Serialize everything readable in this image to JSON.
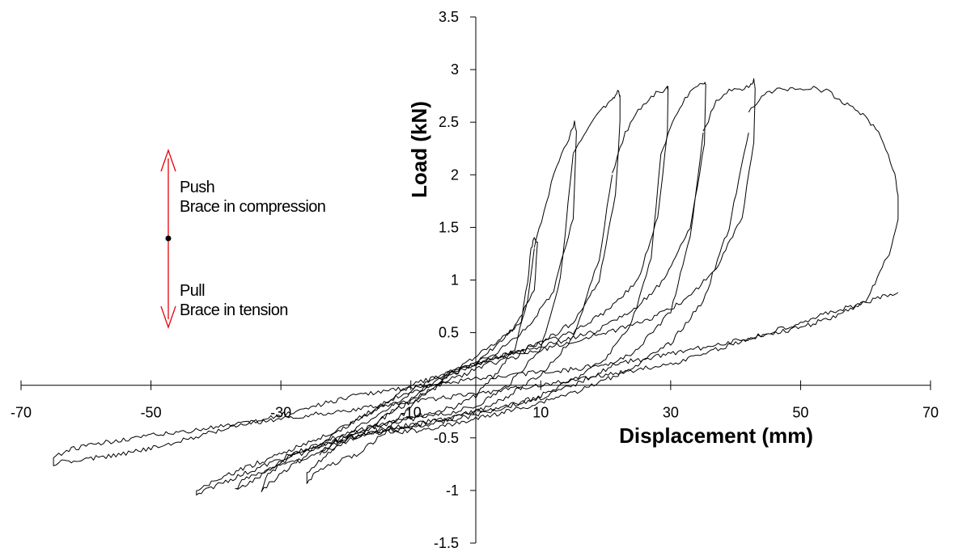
{
  "chart_data": {
    "type": "line",
    "title": "",
    "xlabel": "Displacement (mm)",
    "ylabel": "Load (kN)",
    "xlim": [
      -70,
      70
    ],
    "ylim": [
      -1.5,
      3.5
    ],
    "xticks": [
      "-70",
      "-50",
      "-30",
      "-10",
      "10",
      "30",
      "50",
      "70"
    ],
    "yticks": [
      "-1.5",
      "-1",
      "-0.5",
      "0.5",
      "1",
      "1.5",
      "2",
      "2.5",
      "3",
      "3.5"
    ],
    "grid": false,
    "legend": "none",
    "annotations": {
      "push_label": "Push",
      "push_desc": "Brace in compression",
      "pull_label": "Pull",
      "pull_desc": "Brace in tension",
      "arrow_color": "#e8000b"
    },
    "series": [
      {
        "x": [
          0,
          7,
          8,
          8.5,
          9,
          9.5,
          9,
          6,
          2,
          -2,
          -6,
          -10,
          -14,
          -18,
          -22,
          -25,
          -26,
          -26,
          -22,
          -18,
          -14,
          -10,
          -6,
          -3,
          0,
          3,
          6,
          8,
          9
        ],
        "y": [
          0.2,
          0.6,
          1.0,
          1.3,
          1.4,
          1.35,
          0.9,
          0.55,
          0.35,
          0.2,
          0.02,
          -0.2,
          -0.45,
          -0.65,
          -0.75,
          -0.85,
          -0.95,
          -0.85,
          -0.6,
          -0.45,
          -0.35,
          -0.3,
          -0.25,
          -0.2,
          -0.1,
          0.1,
          0.35,
          0.8,
          1.3
        ]
      },
      {
        "x": [
          9,
          12,
          14,
          15,
          15.2,
          15.5,
          15,
          12,
          8,
          3,
          -2,
          -8,
          -14,
          -20,
          -26,
          -32,
          -36,
          -37,
          -34,
          -28,
          -22,
          -16,
          -10,
          -5,
          0,
          5,
          10,
          13,
          15
        ],
        "y": [
          1.3,
          2.0,
          2.3,
          2.45,
          2.5,
          2.4,
          1.6,
          0.9,
          0.55,
          0.3,
          0.15,
          -0.05,
          -0.3,
          -0.55,
          -0.7,
          -0.8,
          -0.9,
          -1.0,
          -0.9,
          -0.65,
          -0.5,
          -0.4,
          -0.32,
          -0.28,
          -0.2,
          0.0,
          0.35,
          1.0,
          2.2
        ]
      },
      {
        "x": [
          15,
          17,
          19,
          20,
          21,
          21.5,
          22,
          22.2,
          22.2,
          21.5,
          19,
          15,
          10,
          5,
          0,
          -5,
          -10,
          -16,
          -22,
          -28,
          -34,
          -38,
          -43,
          -43,
          -40,
          -34,
          -28,
          -22,
          -16,
          -10,
          -4,
          0,
          5,
          10,
          15,
          19,
          21
        ],
        "y": [
          2.2,
          2.4,
          2.6,
          2.65,
          2.7,
          2.75,
          2.8,
          2.75,
          2.5,
          1.8,
          1.0,
          0.6,
          0.4,
          0.3,
          0.2,
          0.1,
          0.0,
          -0.25,
          -0.45,
          -0.6,
          -0.75,
          -0.85,
          -1.0,
          -1.05,
          -0.95,
          -0.8,
          -0.65,
          -0.55,
          -0.45,
          -0.38,
          -0.32,
          -0.25,
          -0.1,
          0.1,
          0.45,
          1.2,
          2.0
        ]
      },
      {
        "x": [
          21,
          23,
          25,
          27,
          28.5,
          29.5,
          29.6,
          29.5,
          28,
          25,
          20,
          15,
          10,
          5,
          0,
          -5,
          -10,
          -15,
          -20,
          -25,
          -28,
          -31,
          -33,
          -32,
          -29,
          -25,
          -20,
          -15,
          -10,
          -5,
          0,
          5,
          10,
          15,
          20,
          24,
          27,
          28.5
        ],
        "y": [
          2.0,
          2.4,
          2.6,
          2.75,
          2.8,
          2.82,
          2.85,
          2.4,
          1.6,
          1.0,
          0.7,
          0.5,
          0.4,
          0.3,
          0.2,
          0.1,
          -0.05,
          -0.2,
          -0.4,
          -0.6,
          -0.75,
          -0.9,
          -1.0,
          -0.85,
          -0.7,
          -0.6,
          -0.5,
          -0.42,
          -0.38,
          -0.32,
          -0.25,
          -0.2,
          -0.1,
          0.05,
          0.25,
          0.6,
          1.2,
          2.2
        ]
      },
      {
        "x": [
          28.5,
          31,
          33,
          34.5,
          35.2,
          35.4,
          35.2,
          33,
          29,
          24,
          18,
          12,
          6,
          0,
          -6,
          -12,
          -18,
          -22,
          -24,
          -23,
          -20,
          -15,
          -10,
          -5,
          0,
          5,
          10,
          15,
          20,
          25,
          30,
          33,
          35
        ],
        "y": [
          2.2,
          2.6,
          2.8,
          2.85,
          2.87,
          2.85,
          2.3,
          1.5,
          1.0,
          0.7,
          0.5,
          0.4,
          0.3,
          0.2,
          0.05,
          -0.15,
          -0.4,
          -0.55,
          -0.65,
          -0.6,
          -0.5,
          -0.45,
          -0.4,
          -0.35,
          -0.28,
          -0.2,
          -0.12,
          0.0,
          0.15,
          0.35,
          0.7,
          1.4,
          2.4
        ]
      },
      {
        "x": [
          35,
          37,
          39,
          41,
          42,
          42.5,
          42.8,
          43,
          42.8,
          41,
          37,
          32,
          26,
          20,
          14,
          8,
          2,
          -4,
          -10,
          -14,
          -16,
          -15,
          -12,
          -8,
          -4,
          0,
          4,
          8,
          12,
          16,
          20,
          25,
          30,
          35,
          39,
          42
        ],
        "y": [
          2.4,
          2.7,
          2.8,
          2.82,
          2.85,
          2.88,
          2.9,
          2.8,
          2.3,
          1.6,
          1.1,
          0.8,
          0.6,
          0.5,
          0.4,
          0.3,
          0.2,
          0.05,
          -0.15,
          -0.3,
          -0.4,
          -0.45,
          -0.45,
          -0.42,
          -0.38,
          -0.32,
          -0.26,
          -0.2,
          -0.12,
          -0.05,
          0.05,
          0.2,
          0.4,
          0.8,
          1.5,
          2.4
        ]
      },
      {
        "x": [
          42,
          44,
          46,
          48,
          50,
          52,
          54,
          56,
          58,
          60,
          62,
          63.5,
          64.5,
          65,
          65,
          64,
          60,
          55,
          50,
          45,
          40,
          35,
          30,
          25,
          20,
          15,
          10,
          5,
          0,
          -5,
          -10,
          -15,
          -20,
          -25,
          -30,
          -35,
          -40,
          -45,
          -50,
          -55,
          -60,
          -63,
          -65,
          -65,
          -63,
          -60,
          -55,
          -50,
          -45,
          -40,
          -35,
          -30,
          -25,
          -20,
          -15,
          -10,
          -5,
          0,
          5,
          10,
          15,
          20,
          25,
          30,
          35,
          40,
          45,
          50,
          55,
          60,
          63,
          65
        ],
        "y": [
          2.6,
          2.75,
          2.8,
          2.82,
          2.82,
          2.82,
          2.8,
          2.7,
          2.65,
          2.55,
          2.4,
          2.2,
          2.0,
          1.8,
          1.6,
          1.3,
          0.8,
          0.65,
          0.55,
          0.48,
          0.42,
          0.36,
          0.3,
          0.24,
          0.2,
          0.15,
          0.12,
          0.1,
          0.06,
          0.02,
          -0.02,
          -0.06,
          -0.12,
          -0.2,
          -0.28,
          -0.36,
          -0.44,
          -0.52,
          -0.6,
          -0.66,
          -0.7,
          -0.72,
          -0.75,
          -0.7,
          -0.62,
          -0.58,
          -0.52,
          -0.48,
          -0.44,
          -0.4,
          -0.36,
          -0.32,
          -0.28,
          -0.24,
          -0.2,
          -0.16,
          -0.12,
          -0.08,
          -0.04,
          0.0,
          0.05,
          0.1,
          0.15,
          0.2,
          0.3,
          0.4,
          0.5,
          0.6,
          0.7,
          0.78,
          0.85,
          0.88
        ]
      }
    ]
  }
}
